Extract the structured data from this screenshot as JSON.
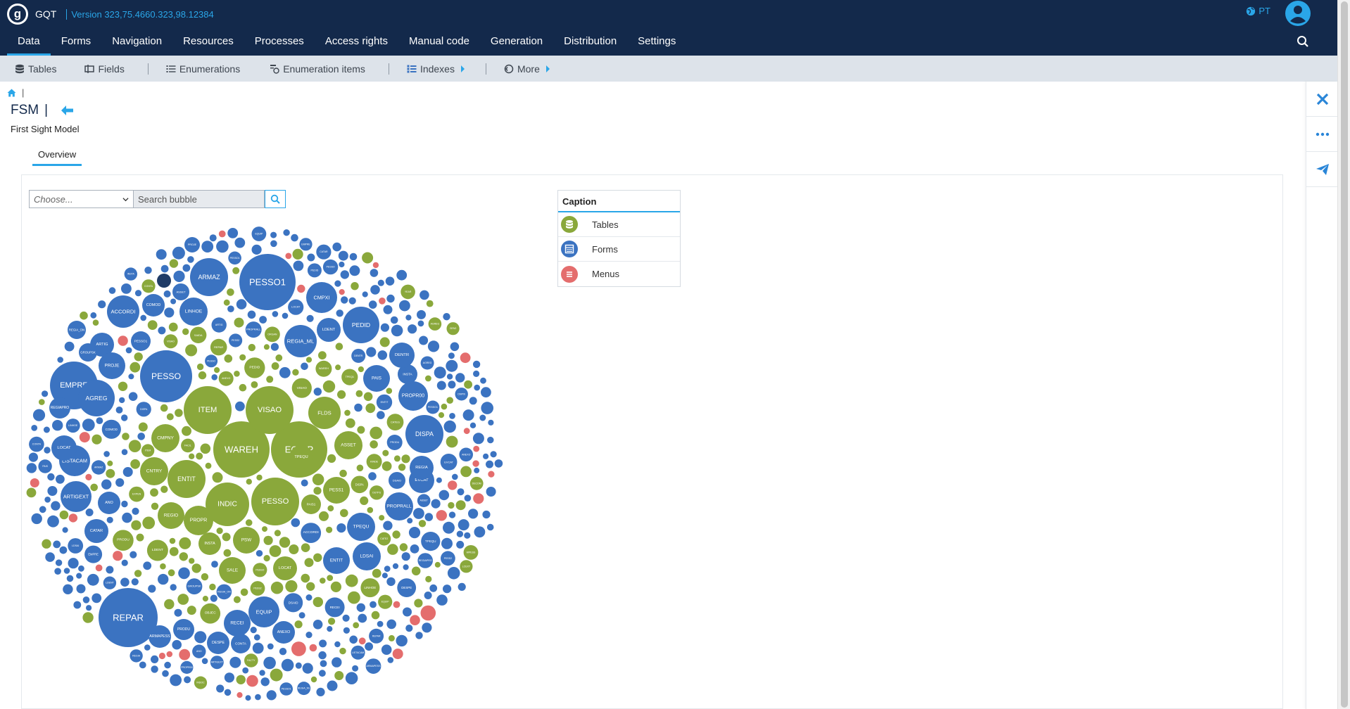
{
  "header": {
    "logo_letter": "g",
    "app_name": "GQT",
    "version": "Version 323,75.4660.323,98.12384",
    "language": "PT"
  },
  "nav": {
    "items": [
      {
        "label": "Data",
        "active": true
      },
      {
        "label": "Forms"
      },
      {
        "label": "Navigation"
      },
      {
        "label": "Resources"
      },
      {
        "label": "Processes"
      },
      {
        "label": "Access rights"
      },
      {
        "label": "Manual code"
      },
      {
        "label": "Generation"
      },
      {
        "label": "Distribution"
      },
      {
        "label": "Settings"
      }
    ]
  },
  "toolbar": {
    "tables": "Tables",
    "fields": "Fields",
    "enumerations": "Enumerations",
    "enumeration_items": "Enumeration items",
    "indexes": "Indexes",
    "more": "More"
  },
  "page": {
    "title": "FSM",
    "title_sep": "|",
    "subtitle": "First Sight Model",
    "tab": "Overview"
  },
  "controls": {
    "choose_placeholder": "Choose...",
    "search_placeholder": "Search bubble"
  },
  "caption": {
    "title": "Caption",
    "items": [
      {
        "label": "Tables",
        "color": "#8aa83b"
      },
      {
        "label": "Forms",
        "color": "#3b73c1"
      },
      {
        "label": "Menus",
        "color": "#e46d6d"
      }
    ]
  },
  "colors": {
    "header_bg": "#13294b",
    "accent": "#2aa6e8",
    "table_bubble": "#8aa83b",
    "form_bubble": "#3b73c1",
    "menu_bubble": "#e46d6d",
    "dark_bubble": "#1f3b66"
  },
  "bubble_labels": {
    "tables": [
      "WAREH",
      "EQUIP",
      "VISAO",
      "ITEM",
      "PESSO",
      "INDIC",
      "ENTIT",
      "CNTRY",
      "CMPNY",
      "PROPR",
      "REGIO",
      "FLDS",
      "TPEQU",
      "PSW",
      "ASSET",
      "PESS1",
      "LOCAT",
      "PAIS1",
      "SALE",
      "INSTA",
      "INDOC",
      "KINDE",
      "AGREG",
      "TPEQ1",
      "VISAO",
      "DISPA",
      "REPAR",
      "CONTA",
      "ORGAN",
      "DECOM",
      "PRODU",
      "LINHOE",
      "YEAR",
      "OUTPU",
      "PEDID",
      "FACTY",
      "LDENT",
      "EXPEN",
      "FACIL",
      "CATEG",
      "WPESS",
      "OBJEC",
      "LCEXT",
      "GEN2",
      "SAIDA",
      "ANEXO",
      "CATE2",
      "PESS2"
    ],
    "forms": [
      "PESSO",
      "EMPRE",
      "PESSO1",
      "ARMAZ",
      "COMOD",
      "PEDID",
      "ACCORDI",
      "ARTIG",
      "PAIS",
      "DISPA",
      "PROPR00",
      "INSTA",
      "EVCAT",
      "REGIA",
      "TPEQU",
      "PROPRALL",
      "DSAID",
      "DENTR",
      "LDSAI",
      "ENTIT",
      "REPAR",
      "ARMAPESS",
      "PRODU",
      "DESPE",
      "RECEI",
      "CONTA",
      "EQUIP",
      "ANEXO",
      "LISTACAM",
      "REGIAPRO",
      "ARTIGEXT",
      "CATAR",
      "ANO",
      "LOCAT",
      "LINHOE",
      "ASSET",
      "REGIA_ML",
      "CMPXI",
      "AGREG",
      "PROJE",
      "GROUPSK",
      "REGIA_ON",
      "PESSO1",
      "LDENT",
      "PESS2"
    ],
    "menus": []
  }
}
